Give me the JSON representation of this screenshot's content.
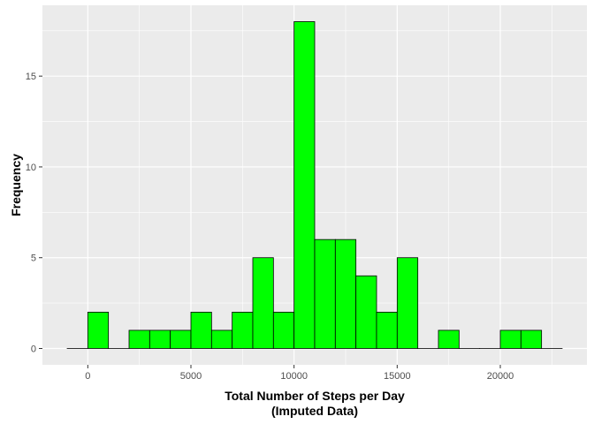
{
  "chart_data": {
    "type": "bar",
    "subtype": "histogram",
    "bin_width": 1000,
    "bins": [
      {
        "x0": -1000,
        "x1": 0,
        "count": 0
      },
      {
        "x0": 0,
        "x1": 1000,
        "count": 2
      },
      {
        "x0": 1000,
        "x1": 2000,
        "count": 0
      },
      {
        "x0": 2000,
        "x1": 3000,
        "count": 1
      },
      {
        "x0": 3000,
        "x1": 4000,
        "count": 1
      },
      {
        "x0": 4000,
        "x1": 5000,
        "count": 1
      },
      {
        "x0": 5000,
        "x1": 6000,
        "count": 2
      },
      {
        "x0": 6000,
        "x1": 7000,
        "count": 1
      },
      {
        "x0": 7000,
        "x1": 8000,
        "count": 2
      },
      {
        "x0": 8000,
        "x1": 9000,
        "count": 5
      },
      {
        "x0": 9000,
        "x1": 10000,
        "count": 2
      },
      {
        "x0": 10000,
        "x1": 11000,
        "count": 18
      },
      {
        "x0": 11000,
        "x1": 12000,
        "count": 6
      },
      {
        "x0": 12000,
        "x1": 13000,
        "count": 6
      },
      {
        "x0": 13000,
        "x1": 14000,
        "count": 4
      },
      {
        "x0": 14000,
        "x1": 15000,
        "count": 2
      },
      {
        "x0": 15000,
        "x1": 16000,
        "count": 5
      },
      {
        "x0": 16000,
        "x1": 17000,
        "count": 0
      },
      {
        "x0": 17000,
        "x1": 18000,
        "count": 1
      },
      {
        "x0": 18000,
        "x1": 19000,
        "count": 0
      },
      {
        "x0": 19000,
        "x1": 20000,
        "count": 0
      },
      {
        "x0": 20000,
        "x1": 21000,
        "count": 1
      },
      {
        "x0": 21000,
        "x1": 22000,
        "count": 1
      },
      {
        "x0": 22000,
        "x1": 23000,
        "count": 0
      }
    ],
    "xlabel": "Total Number of Steps per Day",
    "xlabel_line2": "(Imputed Data)",
    "ylabel": "Frequency",
    "xlim": [
      -2200,
      24200
    ],
    "ylim": [
      -0.9,
      18.9
    ],
    "xticks": [
      0,
      5000,
      10000,
      15000,
      20000
    ],
    "xticks_minor": [
      2500,
      7500,
      12500,
      17500,
      22500
    ],
    "yticks": [
      0,
      5,
      10,
      15
    ],
    "yticks_minor": [
      2.5,
      7.5,
      12.5,
      17.5
    ],
    "grid": true,
    "bar_fill": "#00ff00",
    "bar_stroke": "#000000",
    "panel_background": "#ebebeb",
    "grid_color": "#ffffff"
  }
}
